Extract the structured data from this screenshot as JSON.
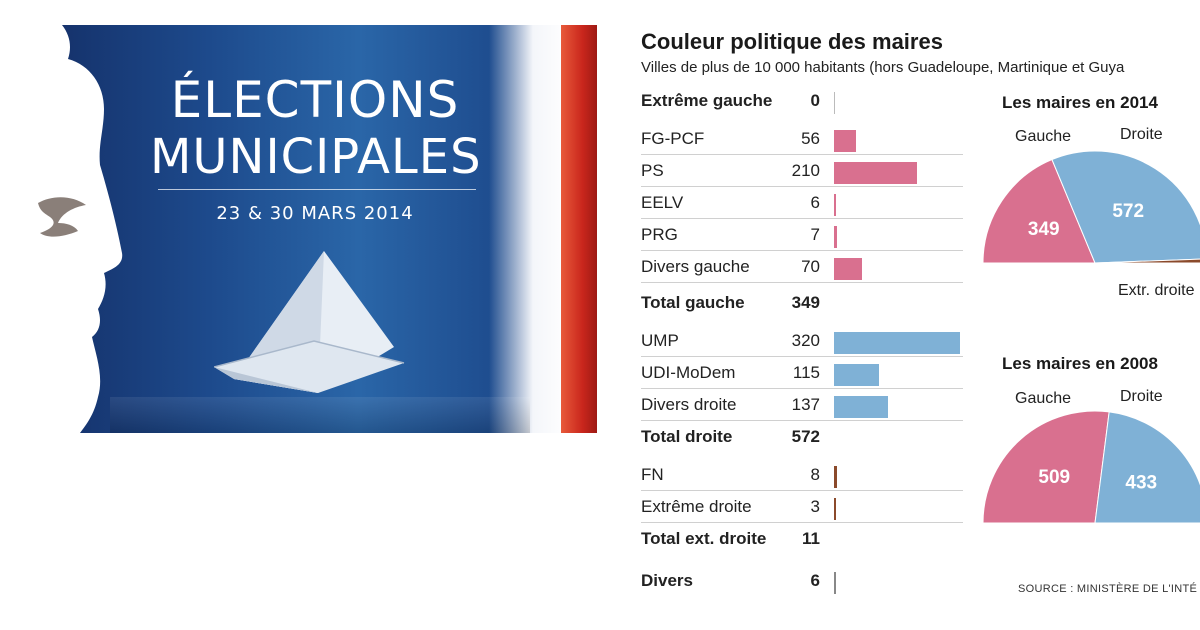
{
  "poster": {
    "title_line1": "ÉLECTIONS",
    "title_line2": "MUNICIPALES",
    "dates": "23 & 30 MARS 2014"
  },
  "colors": {
    "gauche": "#d9708f",
    "droite": "#7fb1d6",
    "extreme_droite": "#8b4a2b",
    "divers": "#888888"
  },
  "chart_data": [
    {
      "type": "bar",
      "title": "Couleur politique des maires",
      "subtitle": "Villes de plus de 10 000 habitants (hors Guadeloupe, Martinique et Guya",
      "rows": [
        {
          "label": "Extrême gauche",
          "value": 0,
          "total": true,
          "group": "gauche"
        },
        {
          "label": "FG-PCF",
          "value": 56,
          "total": false,
          "group": "gauche"
        },
        {
          "label": "PS",
          "value": 210,
          "total": false,
          "group": "gauche"
        },
        {
          "label": "EELV",
          "value": 6,
          "total": false,
          "group": "gauche"
        },
        {
          "label": "PRG",
          "value": 7,
          "total": false,
          "group": "gauche"
        },
        {
          "label": "Divers gauche",
          "value": 70,
          "total": false,
          "group": "gauche"
        },
        {
          "label": "Total gauche",
          "value": 349,
          "total": true,
          "group": "none"
        },
        {
          "label": "UMP",
          "value": 320,
          "total": false,
          "group": "droite"
        },
        {
          "label": "UDI-MoDem",
          "value": 115,
          "total": false,
          "group": "droite"
        },
        {
          "label": "Divers droite",
          "value": 137,
          "total": false,
          "group": "droite"
        },
        {
          "label": "Total droite",
          "value": 572,
          "total": true,
          "group": "none"
        },
        {
          "label": "FN",
          "value": 8,
          "total": false,
          "group": "extreme_droite"
        },
        {
          "label": "Extrême droite",
          "value": 3,
          "total": false,
          "group": "extreme_droite"
        },
        {
          "label": "Total ext. droite",
          "value": 11,
          "total": true,
          "group": "none"
        },
        {
          "label": "Divers",
          "value": 6,
          "total": true,
          "group": "divers"
        }
      ],
      "xlim": [
        0,
        320
      ]
    },
    {
      "type": "pie",
      "title": "Les maires en 2014",
      "slices": [
        {
          "label": "Gauche",
          "value": 349
        },
        {
          "label": "Droite",
          "value": 572
        },
        {
          "label": "Extr. droite",
          "value": 11
        }
      ]
    },
    {
      "type": "pie",
      "title": "Les maires en 2008",
      "slices": [
        {
          "label": "Gauche",
          "value": 509
        },
        {
          "label": "Droite",
          "value": 433
        }
      ]
    }
  ],
  "source": "SOURCE : MINISTÈRE DE L'INTÉ"
}
